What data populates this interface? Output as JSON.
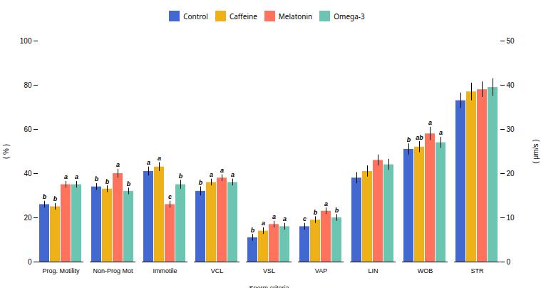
{
  "chart_data": {
    "type": "bar",
    "categories": [
      "Prog. Motility",
      "Non-Prog Mot",
      "Immotile",
      "VCL",
      "VSL",
      "VAP",
      "LIN",
      "WOB",
      "STR"
    ],
    "series": [
      {
        "name": "Control",
        "values": [
          26,
          34,
          41,
          32,
          11,
          16,
          38,
          51,
          73
        ],
        "errors": [
          1.5,
          1.5,
          2.0,
          2.0,
          1.5,
          1.5,
          2.5,
          2.5,
          3.5
        ],
        "sig_labels": [
          "b",
          "b",
          "a",
          "b",
          "b",
          "c",
          null,
          "b",
          null
        ]
      },
      {
        "name": "Caffeine",
        "values": [
          25,
          33,
          43,
          36,
          14,
          19,
          41,
          52,
          77
        ],
        "errors": [
          1.5,
          1.5,
          2.0,
          1.5,
          1.5,
          1.5,
          2.5,
          2.5,
          4.0
        ],
        "sig_labels": [
          "b",
          "b",
          "a",
          "a",
          "a",
          "b",
          null,
          "ab",
          null
        ]
      },
      {
        "name": "Melatonin",
        "values": [
          35,
          40,
          26,
          38,
          17,
          23,
          46,
          58,
          78
        ],
        "errors": [
          1.5,
          2.0,
          1.5,
          1.5,
          1.5,
          1.5,
          2.5,
          3.0,
          3.5
        ],
        "sig_labels": [
          "a",
          "a",
          "c",
          "a",
          "a",
          "a",
          null,
          "a",
          null
        ]
      },
      {
        "name": "Omega-3",
        "values": [
          35,
          32,
          35,
          36,
          16,
          20,
          44,
          54,
          79
        ],
        "errors": [
          1.5,
          1.5,
          2.0,
          1.5,
          1.5,
          1.5,
          2.5,
          2.5,
          4.0
        ],
        "sig_labels": [
          "a",
          "b",
          "b",
          "a",
          "a",
          "b",
          null,
          "a",
          null
        ]
      }
    ],
    "xlabel": "Sperm criteria",
    "ylabel": "( % )",
    "ylim": [
      0,
      100
    ],
    "yticks": [
      0,
      20,
      40,
      60,
      80,
      100
    ],
    "y2label": "( μm/s )",
    "y2lim": [
      0,
      50
    ],
    "y2ticks": [
      0,
      10,
      20,
      30,
      40,
      50
    ],
    "legend": "upper center",
    "grid": false
  }
}
